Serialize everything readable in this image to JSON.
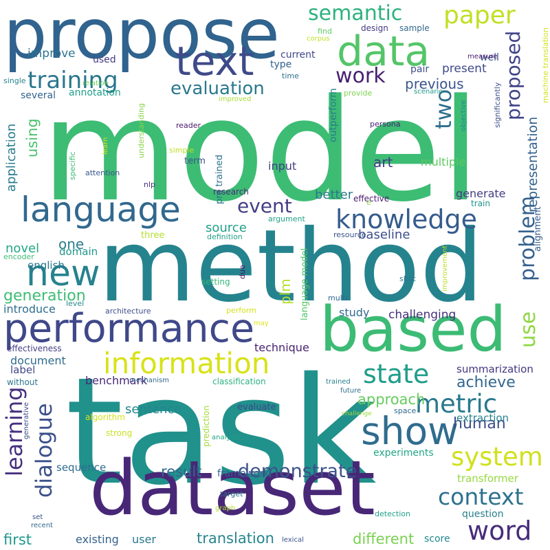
{
  "words": [
    {
      "text": "model",
      "color": "#3dbc74"
    },
    {
      "text": "task",
      "color": "#21918c"
    },
    {
      "text": "method",
      "color": "#25838e"
    },
    {
      "text": "dataset",
      "color": "#482777"
    },
    {
      "text": "propose",
      "color": "#30638e"
    },
    {
      "text": "based",
      "color": "#3cbb75"
    },
    {
      "text": "performance",
      "color": "#3f4889"
    },
    {
      "text": "language",
      "color": "#31688e"
    },
    {
      "text": "text",
      "color": "#3e4a89"
    },
    {
      "text": "data",
      "color": "#54c568"
    },
    {
      "text": "new",
      "color": "#26828e"
    },
    {
      "text": "information",
      "color": "#d8e219"
    },
    {
      "text": "show",
      "color": "#2f6c8e"
    },
    {
      "text": "knowledge",
      "color": "#365c8d"
    },
    {
      "text": "state",
      "color": "#1f9e89"
    },
    {
      "text": "metric",
      "color": "#29798e"
    },
    {
      "text": "system",
      "color": "#d0e11c"
    },
    {
      "text": "word",
      "color": "#472d7b"
    },
    {
      "text": "paper",
      "color": "#c2df23"
    },
    {
      "text": "training",
      "color": "#2a768e"
    },
    {
      "text": "semantic",
      "color": "#2db27d"
    },
    {
      "text": "learning",
      "color": "#46307e"
    },
    {
      "text": "dialogue",
      "color": "#3b518b"
    },
    {
      "text": "context",
      "color": "#2d718e"
    },
    {
      "text": "demonstrate",
      "color": "#3b528b"
    },
    {
      "text": "event",
      "color": "#433e85"
    },
    {
      "text": "two",
      "color": "#2e6e8e"
    },
    {
      "text": "proposed",
      "color": "#404387"
    },
    {
      "text": "problem",
      "color": "#34608d"
    },
    {
      "text": "use",
      "color": "#90d743"
    },
    {
      "text": "work",
      "color": "#482071"
    },
    {
      "text": "evaluation",
      "color": "#2a788e"
    },
    {
      "text": "human",
      "color": "#3e4c8a"
    },
    {
      "text": "generation",
      "color": "#3cbc74"
    },
    {
      "text": "approach",
      "color": "#65cb5e"
    },
    {
      "text": "achieve",
      "color": "#32658e"
    },
    {
      "text": "result",
      "color": "#31688e"
    },
    {
      "text": "different",
      "color": "#7ad151"
    },
    {
      "text": "translation",
      "color": "#25848e"
    },
    {
      "text": "using",
      "color": "#4ac16d"
    },
    {
      "text": "application",
      "color": "#287c8e"
    },
    {
      "text": "previous",
      "color": "#3a548c"
    },
    {
      "text": "art",
      "color": "#443983"
    },
    {
      "text": "plm",
      "color": "#b5de2b"
    },
    {
      "text": "one",
      "color": "#287d8e"
    },
    {
      "text": "novel",
      "color": "#22a884"
    },
    {
      "text": "baseline",
      "color": "#3d4d8a"
    },
    {
      "text": "better",
      "color": "#2a788e"
    },
    {
      "text": "source",
      "color": "#1fa088"
    },
    {
      "text": "first",
      "color": "#1f988b"
    },
    {
      "text": "sentence",
      "color": "#24868e"
    },
    {
      "text": "representation",
      "color": "#33628d"
    },
    {
      "text": "present",
      "color": "#3e4989"
    },
    {
      "text": "improve",
      "color": "#2c738e"
    },
    {
      "text": "generate",
      "color": "#433d84"
    },
    {
      "text": "introduce",
      "color": "#2e6e8e"
    },
    {
      "text": "study",
      "color": "#30698e"
    },
    {
      "text": "challenging",
      "color": "#46307e"
    },
    {
      "text": "domain",
      "color": "#1f968b"
    },
    {
      "text": "english",
      "color": "#2a768e"
    },
    {
      "text": "document",
      "color": "#2f6b8e"
    },
    {
      "text": "input",
      "color": "#423f85"
    },
    {
      "text": "multiple",
      "color": "#5ec962"
    },
    {
      "text": "label",
      "color": "#3f4788"
    },
    {
      "text": "benchmark",
      "color": "#482878"
    },
    {
      "text": "technique",
      "color": "#481f70"
    },
    {
      "text": "summarization",
      "color": "#453581"
    },
    {
      "text": "sequence",
      "color": "#2f6c8e"
    },
    {
      "text": "framework",
      "color": "#355f8d"
    },
    {
      "text": "experiments",
      "color": "#21a685"
    },
    {
      "text": "extraction",
      "color": "#26818e"
    },
    {
      "text": "transformer",
      "color": "#95d840"
    },
    {
      "text": "question",
      "color": "#27808e"
    },
    {
      "text": "existing",
      "color": "#34618d"
    },
    {
      "text": "user",
      "color": "#2a788e"
    },
    {
      "text": "score",
      "color": "#23888e"
    },
    {
      "text": "current",
      "color": "#404688"
    },
    {
      "text": "used",
      "color": "#443a83"
    },
    {
      "text": "annotation",
      "color": "#1f9f88"
    },
    {
      "text": "several",
      "color": "#33638d"
    },
    {
      "text": "well",
      "color": "#3b528b"
    },
    {
      "text": "pair",
      "color": "#3d4e8a"
    },
    {
      "text": "type",
      "color": "#33628d"
    },
    {
      "text": "sample",
      "color": "#31678e"
    },
    {
      "text": "design",
      "color": "#453882"
    },
    {
      "text": "find",
      "color": "#5ec962"
    },
    {
      "text": "corpus",
      "color": "#bddf26"
    },
    {
      "text": "time",
      "color": "#2e6f8e"
    },
    {
      "text": "measure",
      "color": "#481b6d"
    },
    {
      "text": "machine translation",
      "color": "#d2e21b"
    },
    {
      "text": "provide",
      "color": "#7fd34e"
    },
    {
      "text": "scenario",
      "color": "#1f9a8a"
    },
    {
      "text": "objective",
      "color": "#24878e"
    },
    {
      "text": "significantly",
      "color": "#3b528b"
    },
    {
      "text": "persona",
      "color": "#482173"
    },
    {
      "text": "outperform",
      "color": "#297b8e"
    },
    {
      "text": "alignment",
      "color": "#365c8d"
    },
    {
      "text": "resource",
      "color": "#3a538b"
    },
    {
      "text": "improved",
      "color": "#a5db36"
    },
    {
      "text": "relation",
      "color": "#6ccd5a"
    },
    {
      "text": "single",
      "color": "#26828e"
    },
    {
      "text": "understanding",
      "color": "#87d549"
    },
    {
      "text": "specific",
      "color": "#3cbc74"
    },
    {
      "text": "reader",
      "color": "#481769"
    },
    {
      "text": "simple",
      "color": "#bddf26"
    },
    {
      "text": "learn",
      "color": "#dde318"
    },
    {
      "text": "term",
      "color": "#3b528b"
    },
    {
      "text": "pre trained",
      "color": "#2c718e"
    },
    {
      "text": "attention",
      "color": "#39558c"
    },
    {
      "text": "nlp",
      "color": "#46327e"
    },
    {
      "text": "research",
      "color": "#472c7a"
    },
    {
      "text": "effective",
      "color": "#481b6d"
    },
    {
      "text": "train",
      "color": "#20928c"
    },
    {
      "text": "argument",
      "color": "#1fa187"
    },
    {
      "text": "e",
      "color": "#8bd646"
    },
    {
      "text": "definition",
      "color": "#1fa088"
    },
    {
      "text": "three",
      "color": "#b5de2b"
    },
    {
      "text": "encoder",
      "color": "#3fbc73"
    },
    {
      "text": "setting",
      "color": "#35b779"
    },
    {
      "text": "due",
      "color": "#481467"
    },
    {
      "text": "language model",
      "color": "#52c569"
    },
    {
      "text": "shot",
      "color": "#2b758e"
    },
    {
      "text": "improvement",
      "color": "#bade28"
    },
    {
      "text": "level",
      "color": "#24878e"
    },
    {
      "text": "multi",
      "color": "#31668e"
    },
    {
      "text": "architecture",
      "color": "#3d4e8a"
    },
    {
      "text": "perform",
      "color": "#d5e21a"
    },
    {
      "text": "may",
      "color": "#e2e418"
    },
    {
      "text": "effectiveness",
      "color": "#433e85"
    },
    {
      "text": "without",
      "color": "#2a768e"
    },
    {
      "text": "mechanism",
      "color": "#31688e"
    },
    {
      "text": "classification",
      "color": "#2ab07f"
    },
    {
      "text": "trained",
      "color": "#277f8e"
    },
    {
      "text": "future",
      "color": "#2e6f8e"
    },
    {
      "text": "generative",
      "color": "#3e4c8a"
    },
    {
      "text": "algorithm",
      "color": "#d2e21b"
    },
    {
      "text": "prediction",
      "color": "#a2da37"
    },
    {
      "text": "evaluate",
      "color": "#3f4889"
    },
    {
      "text": "challenge",
      "color": "#9dd93b"
    },
    {
      "text": "space",
      "color": "#306a8e"
    },
    {
      "text": "strong",
      "color": "#cae11f"
    },
    {
      "text": "analysis",
      "color": "#20a386"
    },
    {
      "text": "target",
      "color": "#2e6e8e"
    },
    {
      "text": "graph",
      "color": "#b0dd2f"
    },
    {
      "text": "detection",
      "color": "#1f9f88"
    },
    {
      "text": "set",
      "color": "#3b528b"
    },
    {
      "text": "recent",
      "color": "#31688e"
    },
    {
      "text": "lexical",
      "color": "#3b528b"
    }
  ]
}
